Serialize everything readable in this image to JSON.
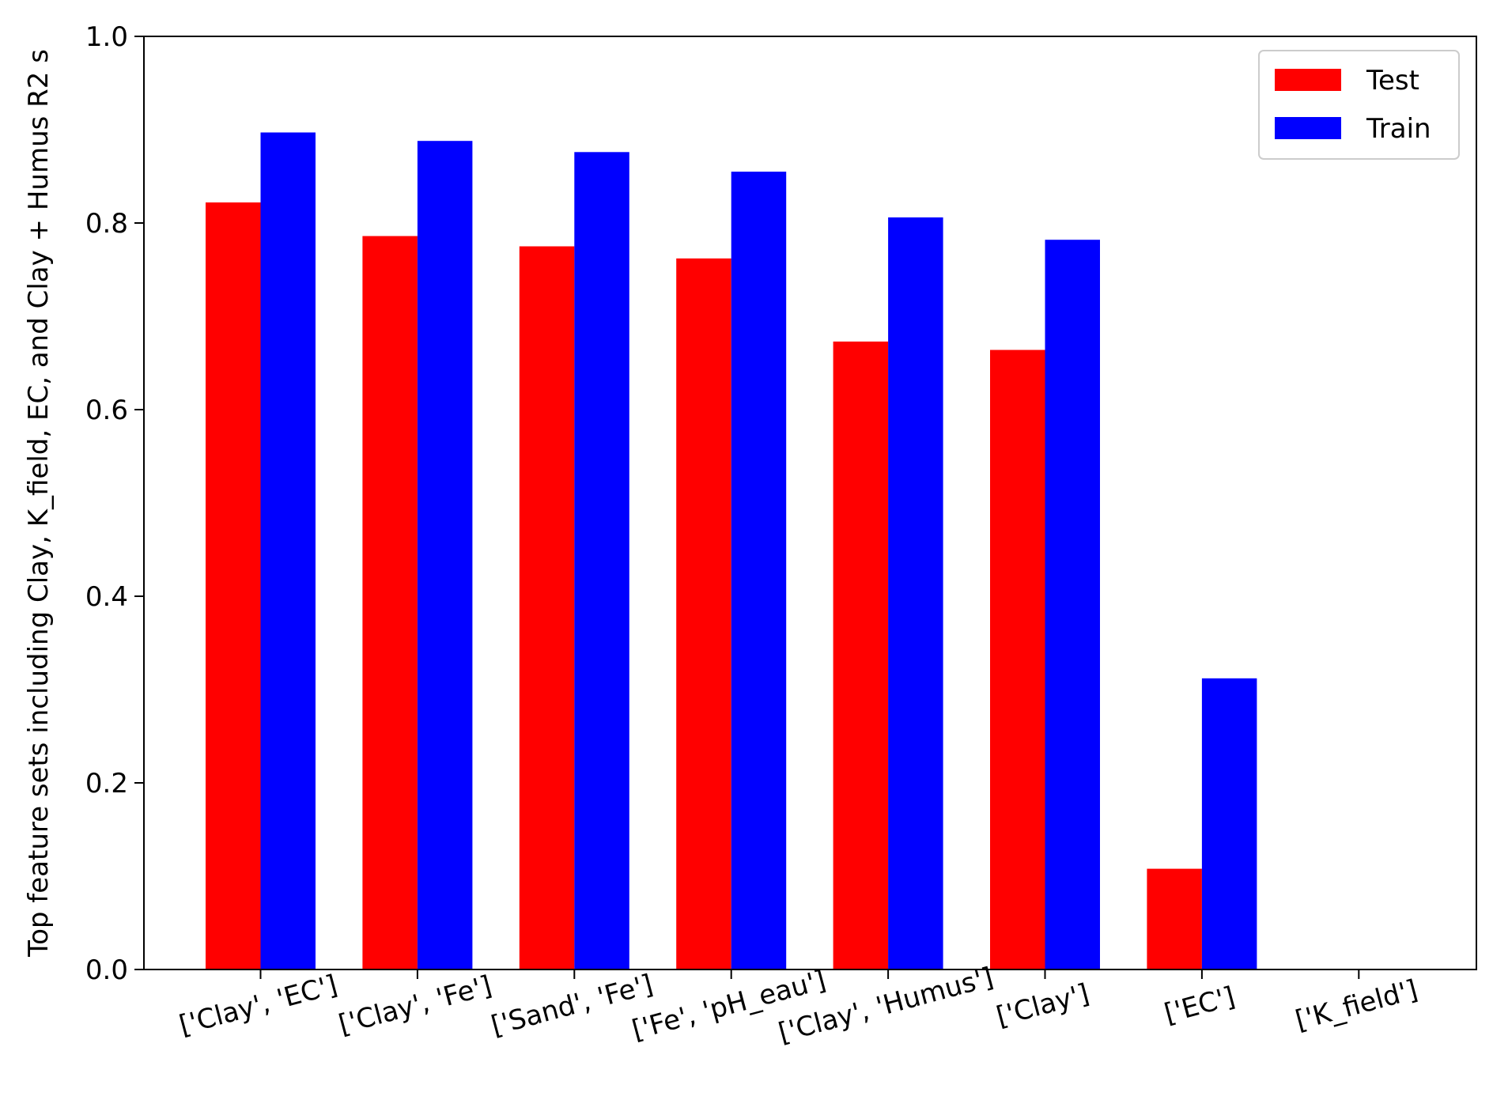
{
  "chart_data": {
    "type": "bar",
    "title": "",
    "xlabel": "",
    "ylabel": "Top feature sets including Clay, K_field, EC, and Clay + Humus R2 s",
    "categories": [
      "['Clay', 'EC']",
      "['Clay', 'Fe']",
      "['Sand', 'Fe']",
      "['Fe', 'pH_eau']",
      "['Clay', 'Humus']",
      "['Clay']",
      "['EC']",
      "['K_field']"
    ],
    "series": [
      {
        "name": "Test",
        "color": "#ff0000",
        "values": [
          0.822,
          0.786,
          0.775,
          0.762,
          0.673,
          0.664,
          0.108,
          0.0
        ]
      },
      {
        "name": "Train",
        "color": "#0000ff",
        "values": [
          0.897,
          0.888,
          0.876,
          0.855,
          0.806,
          0.782,
          0.312,
          0.0
        ]
      }
    ],
    "ylim": [
      0,
      1.0
    ],
    "yticks": [
      "0.0",
      "0.2",
      "0.4",
      "0.6",
      "0.8",
      "1.0"
    ],
    "grid": false,
    "legend_position": "top-right"
  }
}
